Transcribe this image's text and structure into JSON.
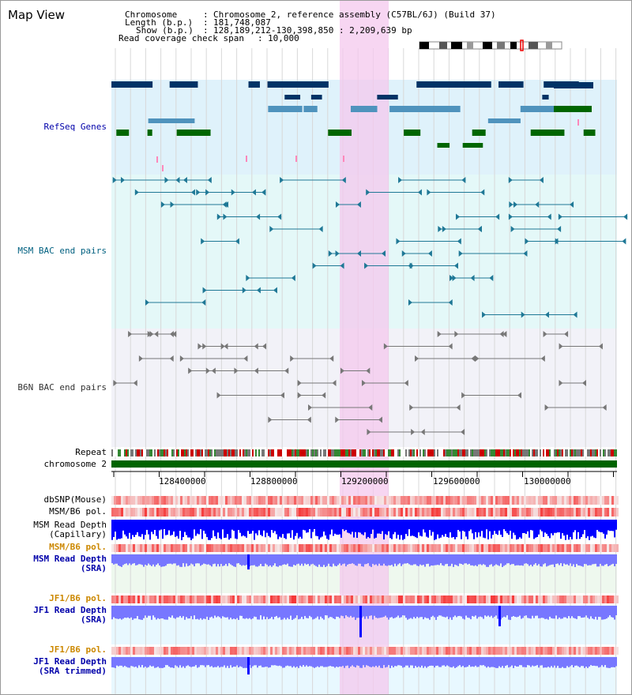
{
  "window": {
    "title": "Map View"
  },
  "info": {
    "chromosome_label": "Chromosome",
    "chromosome_value": "Chromosome 2, reference assembly (C57BL/6J) (Build 37)",
    "length_label": "Length (b.p.)",
    "length_value": "181,748,087",
    "show_label": "Show (b.p.)",
    "show_value": "128,189,212-130,398,850 : 2,209,639 bp",
    "coverage_label": "Read coverage check span",
    "coverage_value": "10,000"
  },
  "tracks": {
    "refseq": "RefSeq Genes",
    "msm_bac": "MSM BAC end pairs",
    "b6n_bac": "B6N BAC end pairs",
    "repeat": "Repeat",
    "chromosome": "chromosome 2",
    "dbsnp": "dbSNP(Mouse)",
    "msm_b6_pol_1": "MSM/B6 pol.",
    "msm_depth_cap_1": "MSM Read Depth",
    "msm_depth_cap_2": "(Capillary)",
    "msm_b6_pol_2": "MSM/B6 pol.",
    "msm_depth_sra_1": "MSM Read Depth",
    "msm_depth_sra_2": "(SRA)",
    "jf1_b6_pol_1": "JF1/B6 pol.",
    "jf1_depth_sra_1": "JF1 Read Depth",
    "jf1_depth_sra_2": "(SRA)",
    "jf1_b6_pol_2": "JF1/B6 pol.",
    "jf1_depth_trim_1": "JF1 Read Depth",
    "jf1_depth_trim_2": "(SRA trimmed)"
  },
  "axis": {
    "ticks": [
      "128400000",
      "128800000",
      "129200000",
      "129600000",
      "130000000"
    ]
  },
  "colors": {
    "refseq_label": "#0000aa",
    "msm_label": "#006080",
    "b6n_label": "#333333",
    "pol_label_orange": "#cc8800",
    "depth_label_blue": "#0000aa",
    "highlight": "#f4c8ee",
    "refseq_bg": "#dff2fb",
    "msm_bg": "#e4f8f8",
    "b6n_bg": "#f2f2f8",
    "chromosome_bar": "#006400",
    "depth_dark": "#0000ff",
    "depth_light": "#7777ff",
    "gene_dark": "#003366",
    "gene_mid": "#4f93bd",
    "gene_green": "#006600"
  }
}
